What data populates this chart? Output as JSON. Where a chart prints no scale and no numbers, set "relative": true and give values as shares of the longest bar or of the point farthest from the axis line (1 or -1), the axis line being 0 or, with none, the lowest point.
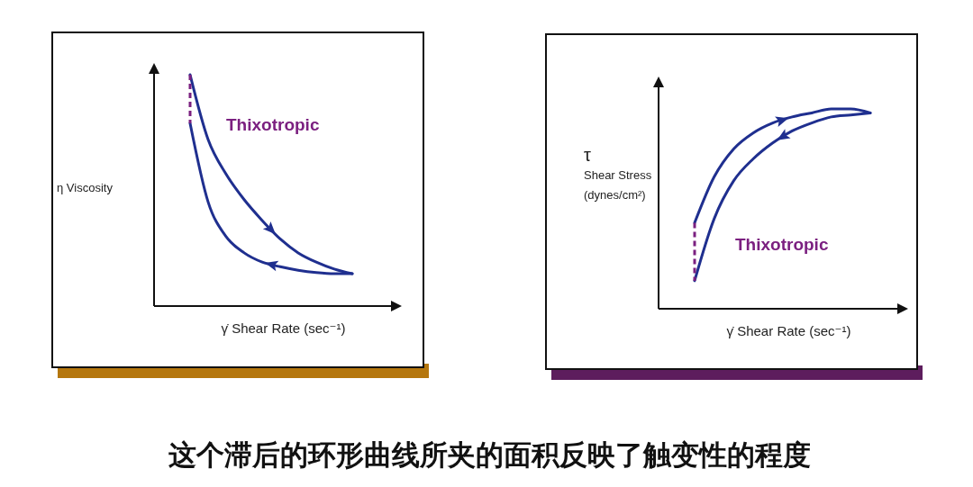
{
  "chart_data": [
    {
      "type": "line",
      "relative": true,
      "xlabel": "γ̇ Shear Rate (sec⁻¹)",
      "ylabel": "η  Viscosity",
      "annotations": [
        "Thixotropic"
      ],
      "categories": [
        null,
        null,
        null,
        null,
        null,
        null,
        null,
        null,
        null,
        null
      ],
      "series": [
        {
          "color": "#1f2f8f",
          "values": [
            1,
            0.72,
            0.57,
            0.46,
            0.37,
            0.29,
            0.23,
            0.19,
            0.16,
            0.14
          ]
        },
        {
          "color": "#1f2f8f",
          "values": [
            0.79,
            0.45,
            0.3,
            0.23,
            0.19,
            0.17,
            0.155,
            0.145,
            0.14,
            0.14
          ]
        }
      ]
    },
    {
      "type": "line",
      "relative": true,
      "xlabel": "γ̇ Shear Rate (sec⁻¹)",
      "ylabel": "τ\nShear Stress\n(dynes/cm²)",
      "annotations": [
        "Thixotropic"
      ],
      "categories": [
        null,
        null,
        null,
        null,
        null,
        null,
        null,
        null,
        null,
        null
      ],
      "series": [
        {
          "color": "#1f2f8f",
          "values": [
            0.43,
            0.66,
            0.8,
            0.88,
            0.93,
            0.96,
            0.98,
            1,
            1,
            0.98
          ]
        },
        {
          "color": "#1f2f8f",
          "values": [
            0.14,
            0.45,
            0.64,
            0.75,
            0.83,
            0.89,
            0.93,
            0.96,
            0.97,
            0.98
          ]
        }
      ]
    },
    {
      "type": "other",
      "title": "这个滞后的环形曲线所夹的面积反映了触变性的程度"
    }
  ]
}
